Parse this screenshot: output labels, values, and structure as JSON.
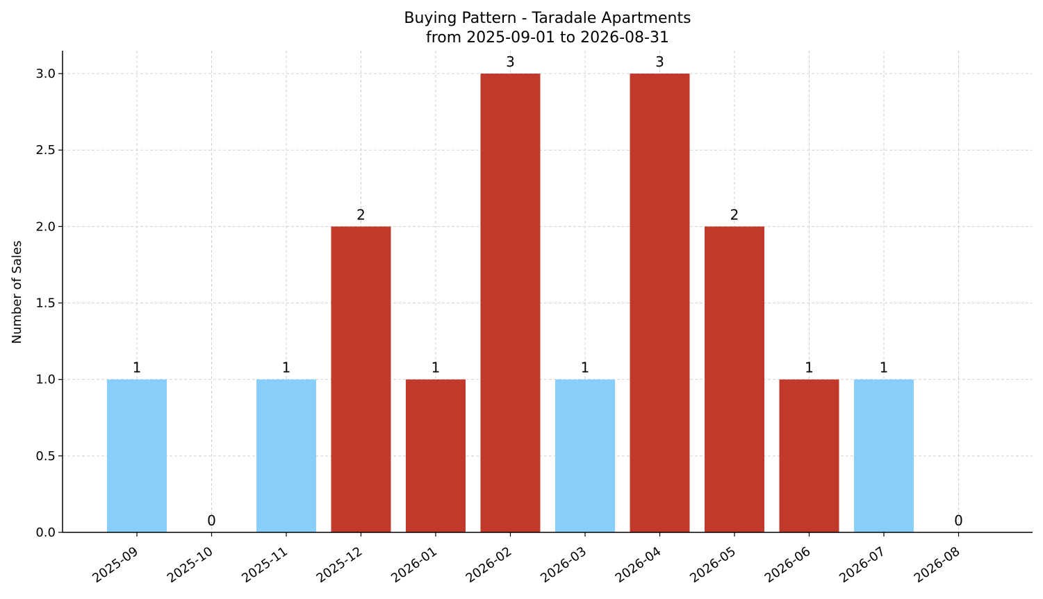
{
  "chart_data": {
    "type": "bar",
    "title_line1": "Buying Pattern - Taradale Apartments",
    "title_line2": "from 2025-09-01 to 2026-08-31",
    "ylabel": "Number of Sales",
    "xlabel": "",
    "ylim": [
      0,
      3.15
    ],
    "yticks": [
      "0.0",
      "0.5",
      "1.0",
      "1.5",
      "2.0",
      "2.5",
      "3.0"
    ],
    "grid": true,
    "categories": [
      "2025-09",
      "2025-10",
      "2025-11",
      "2025-12",
      "2026-01",
      "2026-02",
      "2026-03",
      "2026-04",
      "2026-05",
      "2026-06",
      "2026-07",
      "2026-08"
    ],
    "values": [
      1,
      0,
      1,
      2,
      1,
      3,
      1,
      3,
      2,
      1,
      1,
      0
    ],
    "value_labels": [
      "1",
      "0",
      "1",
      "2",
      "1",
      "3",
      "1",
      "3",
      "2",
      "1",
      "1",
      "0"
    ],
    "bar_colors": [
      "#87CEFA",
      "#87CEFA",
      "#87CEFA",
      "#C0392B",
      "#C0392B",
      "#C0392B",
      "#87CEFA",
      "#C0392B",
      "#C0392B",
      "#C0392B",
      "#87CEFA",
      "#87CEFA"
    ]
  }
}
